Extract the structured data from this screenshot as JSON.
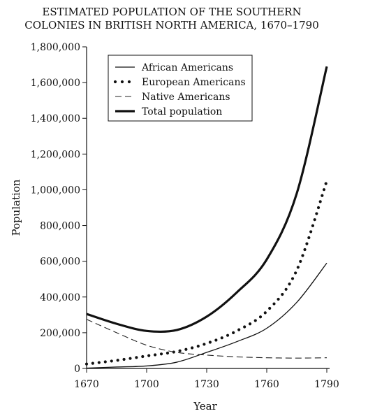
{
  "chart_data": {
    "type": "line",
    "title_lines": [
      "ESTIMATED POPULATION OF THE SOUTHERN",
      "COLONIES IN BRITISH NORTH AMERICA, 1670–1790"
    ],
    "xlabel": "Year",
    "ylabel": "Population",
    "xlim": [
      1670,
      1790
    ],
    "ylim": [
      0,
      1800000
    ],
    "x_ticks": [
      1670,
      1700,
      1730,
      1760,
      1790
    ],
    "x_tick_labels": [
      "1670",
      "1700",
      "1730",
      "1760",
      "1790"
    ],
    "y_ticks": [
      0,
      200000,
      400000,
      600000,
      800000,
      1000000,
      1200000,
      1400000,
      1600000,
      1800000
    ],
    "y_tick_labels": [
      "0",
      "200,000",
      "400,000",
      "600,000",
      "800,000",
      "1,000,000",
      "1,200,000",
      "1,400,000",
      "1,600,000",
      "1,800,000"
    ],
    "grid": false,
    "legend_position": "top-center",
    "series": [
      {
        "name": "African Americans",
        "style": "thin-solid",
        "x": [
          1670,
          1685,
          1700,
          1715,
          1730,
          1745,
          1760,
          1775,
          1790
        ],
        "y": [
          2000,
          8000,
          14000,
          35000,
          90000,
          150000,
          225000,
          370000,
          590000
        ]
      },
      {
        "name": "European Americans",
        "style": "dotted",
        "x": [
          1670,
          1685,
          1700,
          1715,
          1730,
          1745,
          1760,
          1775,
          1790
        ],
        "y": [
          25000,
          45000,
          70000,
          95000,
          140000,
          210000,
          320000,
          550000,
          1050000
        ]
      },
      {
        "name": "Native Americans",
        "style": "dashed",
        "x": [
          1670,
          1685,
          1700,
          1715,
          1730,
          1745,
          1760,
          1775,
          1790
        ],
        "y": [
          275000,
          200000,
          130000,
          90000,
          75000,
          65000,
          60000,
          58000,
          60000
        ]
      },
      {
        "name": "Total population",
        "style": "thick-solid",
        "x": [
          1670,
          1685,
          1700,
          1715,
          1730,
          1745,
          1760,
          1775,
          1790
        ],
        "y": [
          305000,
          250000,
          210000,
          215000,
          290000,
          425000,
          610000,
          980000,
          1690000
        ]
      }
    ]
  }
}
